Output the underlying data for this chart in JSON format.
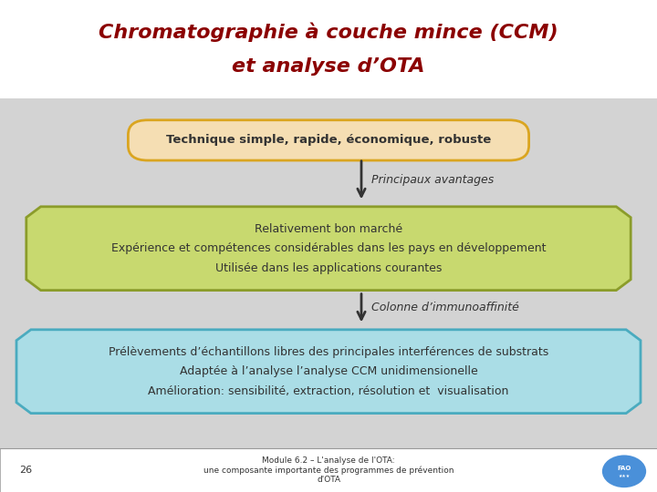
{
  "title_line1": "Chromatographie à couche mince (CCM)",
  "title_line2": "et analyse d’OTA",
  "title_color": "#8B0000",
  "bg_color": "#D3D3D3",
  "header_bg": "#FFFFFF",
  "box1_text": "Technique simple, rapide, économique, robuste",
  "box1_facecolor": "#F5DEB3",
  "box1_edgecolor": "#DAA520",
  "label1_text": "Principaux avantages",
  "box2_line1": "Relativement bon marché",
  "box2_line2": "Expérience et compétences considérables dans les pays en développement",
  "box2_line3": "Utilisée dans les applications courantes",
  "box2_facecolor": "#C8D96F",
  "box2_edgecolor": "#8B9C2A",
  "label2_text": "Colonne d’immunoaffinité",
  "box3_line1": "Prélèvements d’échantillons libres des principales interférences de substrats",
  "box3_line2": "Adaptée à l’analyse l’analyse CCM unidimensionelle",
  "box3_line3": "Amélioration: sensibilité, extraction, résolution et  visualisation",
  "box3_facecolor": "#AADDE6",
  "box3_edgecolor": "#4AABBF",
  "footer_text_center": "Module 6.2 – L'analyse de l'OTA:\nune composante importante des programmes de prévention\nd'OTA",
  "footer_page": "26",
  "footer_bg": "#FFFFFF",
  "arrow_color": "#333333"
}
